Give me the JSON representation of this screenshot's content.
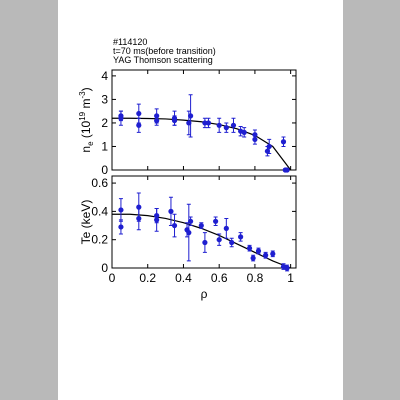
{
  "annotations": [
    "#114120",
    "t=70 ms(before transition)",
    "YAG Thomson scattering"
  ],
  "chart_data": [
    {
      "type": "scatter",
      "ylabel_parts": [
        "n",
        "e",
        " (10",
        "19",
        " m",
        "-3",
        ")"
      ],
      "xlim": [
        0,
        1.03
      ],
      "ylim": [
        0,
        4.25
      ],
      "xticks": [
        0,
        0.2,
        0.4,
        0.6,
        0.8,
        1
      ],
      "xtick_labels": false,
      "yticks": [
        0,
        1,
        2,
        3,
        4
      ],
      "points": {
        "color": "#1f1fd0",
        "x": [
          0.05,
          0.05,
          0.15,
          0.15,
          0.25,
          0.25,
          0.35,
          0.35,
          0.43,
          0.44,
          0.52,
          0.54,
          0.6,
          0.64,
          0.68,
          0.72,
          0.74,
          0.8,
          0.8,
          0.87,
          0.88,
          0.96,
          0.97,
          0.98
        ],
        "values": [
          2.2,
          2.3,
          2.4,
          1.9,
          2.3,
          2.1,
          2.2,
          2.1,
          2.0,
          2.3,
          2.0,
          2.0,
          1.9,
          1.8,
          1.9,
          1.65,
          1.6,
          1.5,
          1.3,
          0.8,
          1.0,
          1.2,
          0.0,
          0.0
        ],
        "errors": [
          0.3,
          0.2,
          0.4,
          0.3,
          0.3,
          0.2,
          0.3,
          0.2,
          0.5,
          0.9,
          0.2,
          0.2,
          0.3,
          0.2,
          0.3,
          0.2,
          0.2,
          0.2,
          0.2,
          0.2,
          0.3,
          0.2,
          0.05,
          0.05
        ]
      },
      "fit": {
        "color": "#000000",
        "x": [
          0,
          0.1,
          0.2,
          0.3,
          0.4,
          0.5,
          0.6,
          0.7,
          0.8,
          0.9,
          1
        ],
        "values": [
          2.2,
          2.2,
          2.19,
          2.17,
          2.12,
          2.05,
          1.93,
          1.75,
          1.47,
          1.0,
          0
        ]
      }
    },
    {
      "type": "scatter",
      "ylabel_parts": [
        "Te (keV)"
      ],
      "xlabel": "ρ",
      "xlim": [
        0,
        1.03
      ],
      "ylim": [
        0,
        0.65
      ],
      "xticks": [
        0,
        0.2,
        0.4,
        0.6,
        0.8,
        1
      ],
      "xtick_labels": true,
      "yticks": [
        0,
        0.2,
        0.4,
        0.6
      ],
      "points": {
        "color": "#1f1fd0",
        "x": [
          0.05,
          0.05,
          0.15,
          0.15,
          0.25,
          0.25,
          0.33,
          0.35,
          0.42,
          0.43,
          0.44,
          0.5,
          0.52,
          0.58,
          0.6,
          0.64,
          0.67,
          0.72,
          0.77,
          0.79,
          0.82,
          0.86,
          0.9,
          0.96,
          0.98
        ],
        "values": [
          0.29,
          0.41,
          0.43,
          0.35,
          0.37,
          0.34,
          0.4,
          0.3,
          0.27,
          0.25,
          0.33,
          0.3,
          0.18,
          0.33,
          0.2,
          0.28,
          0.18,
          0.22,
          0.14,
          0.07,
          0.12,
          0.09,
          0.1,
          0.01,
          0.0
        ],
        "errors": [
          0.05,
          0.08,
          0.1,
          0.08,
          0.05,
          0.08,
          0.1,
          0.08,
          0.05,
          0.2,
          0.03,
          0.02,
          0.07,
          0.03,
          0.04,
          0.07,
          0.03,
          0.03,
          0.02,
          0.02,
          0.02,
          0.02,
          0.02,
          0.02,
          0.02
        ]
      },
      "fit": {
        "color": "#000000",
        "x": [
          0,
          0.1,
          0.2,
          0.3,
          0.4,
          0.5,
          0.6,
          0.7,
          0.8,
          0.9,
          1
        ],
        "values": [
          0.38,
          0.38,
          0.37,
          0.35,
          0.32,
          0.28,
          0.23,
          0.17,
          0.11,
          0.05,
          0
        ]
      }
    }
  ]
}
